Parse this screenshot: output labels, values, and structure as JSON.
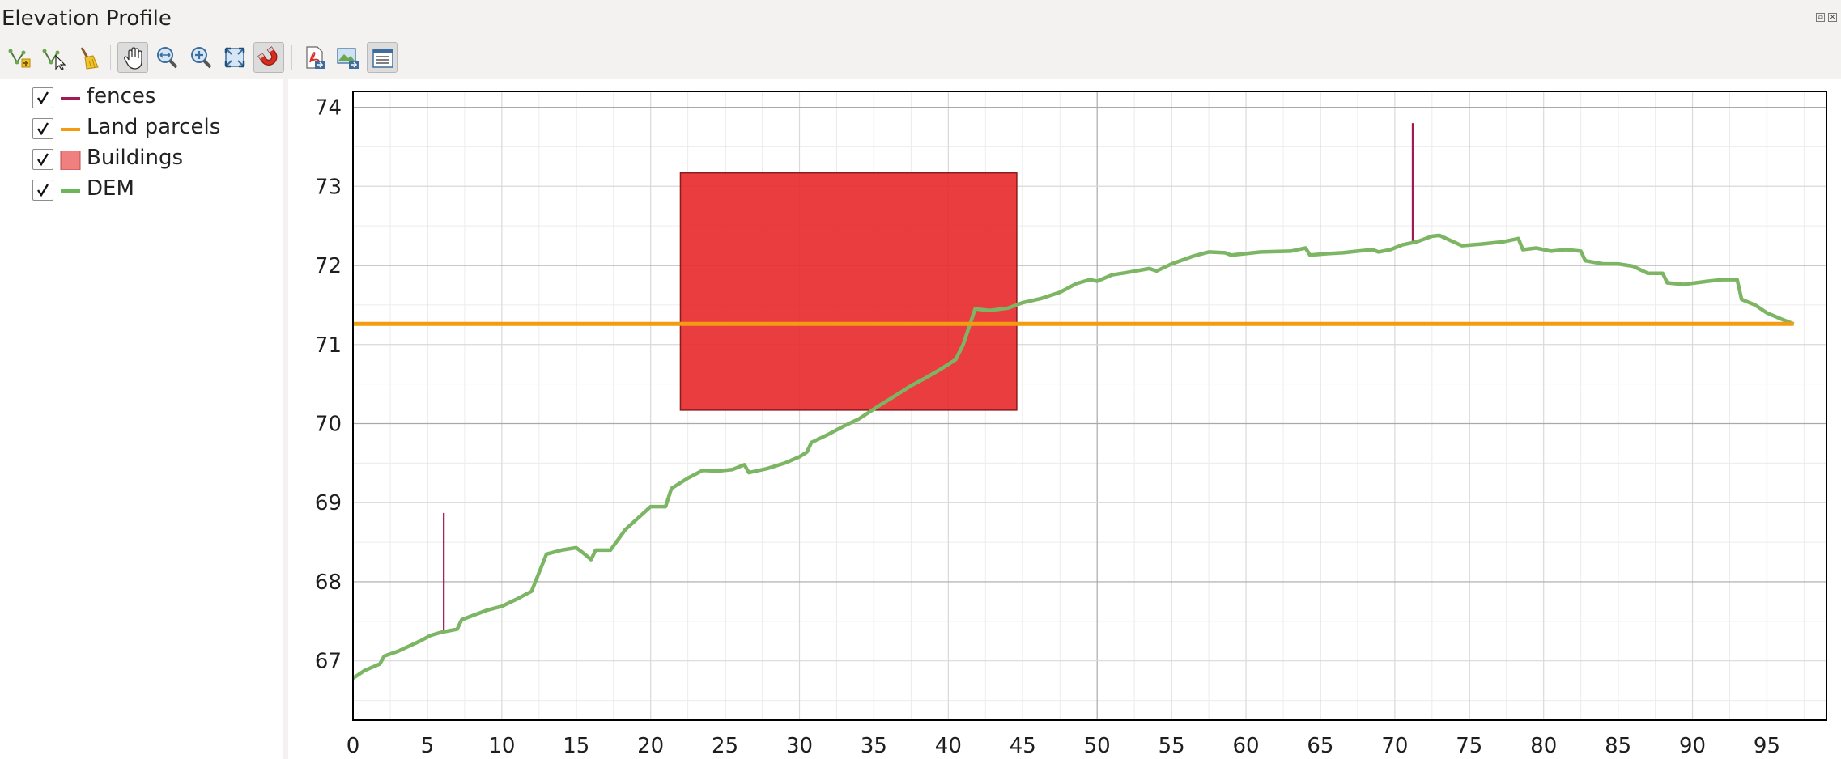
{
  "window": {
    "title": "Elevation Profile",
    "float_button": "⧉",
    "close_button": "✕"
  },
  "toolbar": {
    "tools": [
      {
        "name": "capture-curve-tool",
        "icon": "capture-curve-icon",
        "active": false
      },
      {
        "name": "capture-from-feature-tool",
        "icon": "capture-feature-icon",
        "active": false
      },
      {
        "name": "clear-tool",
        "icon": "broom-icon",
        "active": false
      },
      {
        "name": "pan-tool",
        "icon": "pan-hand-icon",
        "active": true
      },
      {
        "name": "zoom-x-tool",
        "icon": "zoom-x-icon",
        "active": false
      },
      {
        "name": "zoom-in-tool",
        "icon": "zoom-in-icon",
        "active": false
      },
      {
        "name": "zoom-full-tool",
        "icon": "zoom-full-icon",
        "active": false
      },
      {
        "name": "snapping-tool",
        "icon": "magnet-icon",
        "active": true
      },
      {
        "name": "export-pdf-tool",
        "icon": "pdf-export-icon",
        "active": false
      },
      {
        "name": "export-image-tool",
        "icon": "image-export-icon",
        "active": false
      },
      {
        "name": "options-tool",
        "icon": "options-menu-icon",
        "active": true
      }
    ]
  },
  "legend": {
    "items": [
      {
        "label": "fences",
        "checked": true,
        "symbol": "line",
        "color": "#a01b55"
      },
      {
        "label": "Land parcels",
        "checked": true,
        "symbol": "line",
        "color": "#f39c12"
      },
      {
        "label": "Buildings",
        "checked": true,
        "symbol": "fill",
        "color": "#f08080"
      },
      {
        "label": "DEM",
        "checked": true,
        "symbol": "line",
        "color": "#6db55a"
      }
    ]
  },
  "chart_data": {
    "type": "line",
    "title": "",
    "xlabel": "",
    "ylabel": "",
    "xlim": [
      0,
      99
    ],
    "ylim": [
      66.25,
      74.2
    ],
    "x_ticks": [
      0,
      5,
      10,
      15,
      20,
      25,
      30,
      35,
      40,
      45,
      50,
      55,
      60,
      65,
      70,
      75,
      80,
      85,
      90,
      95
    ],
    "y_ticks": [
      67,
      68,
      69,
      70,
      71,
      72,
      73,
      74
    ],
    "grid": true,
    "series": [
      {
        "name": "DEM",
        "color": "#7cb564",
        "x": [
          0,
          0.8,
          1.8,
          2.1,
          3.0,
          4.5,
          5.2,
          5.9,
          7.0,
          7.3,
          8.0,
          9.0,
          10.0,
          11.0,
          12.0,
          13.0,
          14.0,
          15.0,
          15.5,
          16.0,
          16.3,
          17.3,
          18.3,
          20.0,
          21.0,
          21.4,
          22.5,
          23.5,
          24.5,
          25.5,
          26.3,
          26.6,
          27.8,
          29.0,
          30.0,
          30.5,
          30.8,
          31.9,
          33.0,
          34.0,
          35.3,
          36.5,
          37.5,
          38.5,
          39.5,
          40.5,
          41.0,
          41.8,
          42.8,
          44.0,
          45.0,
          46.2,
          47.5,
          48.6,
          49.5,
          50.0,
          51.0,
          52.0,
          53.5,
          54.0,
          55.0,
          56.5,
          57.5,
          58.6,
          59.0,
          61.0,
          63.0,
          64.0,
          64.3,
          65.5,
          66.5,
          67.5,
          68.5,
          68.9,
          69.7,
          70.5,
          71.5,
          72.5,
          73.0,
          74.5,
          75.8,
          77.3,
          78.3,
          78.6,
          79.5,
          80.5,
          81.5,
          82.5,
          82.8,
          84.0,
          85.0,
          86.0,
          87.0,
          88.0,
          88.3,
          89.4,
          91.0,
          92.0,
          93.0,
          93.3,
          94.2,
          95.0,
          96.0,
          96.8
        ],
        "values": [
          66.78,
          66.88,
          66.96,
          67.06,
          67.12,
          67.25,
          67.32,
          67.36,
          67.4,
          67.52,
          67.57,
          67.64,
          67.69,
          67.78,
          67.88,
          68.35,
          68.4,
          68.43,
          68.36,
          68.28,
          68.4,
          68.4,
          68.66,
          68.95,
          68.95,
          69.18,
          69.31,
          69.41,
          69.4,
          69.42,
          69.48,
          69.38,
          69.43,
          69.5,
          69.58,
          69.64,
          69.76,
          69.86,
          69.97,
          70.06,
          70.22,
          70.36,
          70.48,
          70.58,
          70.69,
          70.81,
          71.0,
          71.45,
          71.43,
          71.46,
          71.53,
          71.58,
          71.66,
          71.77,
          71.82,
          71.8,
          71.88,
          71.91,
          71.96,
          71.93,
          72.02,
          72.12,
          72.17,
          72.16,
          72.13,
          72.17,
          72.18,
          72.22,
          72.13,
          72.15,
          72.16,
          72.18,
          72.2,
          72.17,
          72.2,
          72.26,
          72.3,
          72.37,
          72.38,
          72.25,
          72.27,
          72.3,
          72.34,
          72.2,
          72.22,
          72.18,
          72.2,
          72.18,
          72.06,
          72.02,
          72.02,
          71.99,
          71.9,
          71.9,
          71.78,
          71.76,
          71.8,
          71.82,
          71.82,
          71.57,
          71.5,
          71.4,
          71.32,
          71.26
        ]
      },
      {
        "name": "Land parcels",
        "color": "#f39c12",
        "x": [
          0,
          96.8
        ],
        "values": [
          71.26,
          71.26
        ]
      },
      {
        "name": "fences",
        "color": "#a01b55",
        "segments": [
          {
            "x": 6.1,
            "y_from": 67.36,
            "y_to": 68.87
          },
          {
            "x": 71.2,
            "y_from": 72.3,
            "y_to": 73.8
          }
        ]
      },
      {
        "name": "Buildings",
        "color": "#e8282b",
        "rect": {
          "x_from": 22.0,
          "x_to": 44.6,
          "y_from": 70.17,
          "y_to": 73.17
        }
      }
    ]
  }
}
